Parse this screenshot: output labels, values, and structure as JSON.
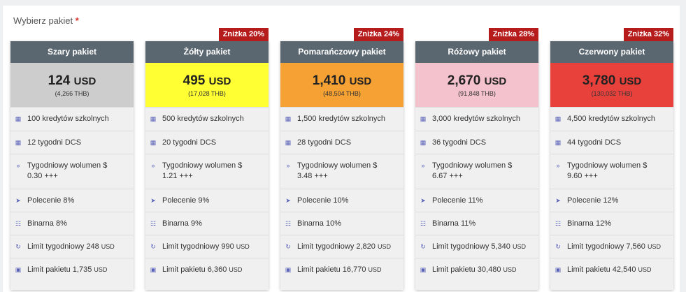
{
  "section": {
    "label": "Wybierz pakiet",
    "required_mark": "*"
  },
  "labels": {
    "credits_suffix": "kredytów szkolnych",
    "dcs_suffix": "tygodni DCS",
    "volume_prefix": "Tygodniowy wolumen $",
    "volume_suffix": "+++",
    "referral_prefix": "Polecenie",
    "binary_prefix": "Binarna",
    "weekly_limit_prefix": "Limit tygodniowy",
    "package_limit_prefix": "Limit pakietu",
    "currency": "USD"
  },
  "packages": [
    {
      "name": "Szary pakiet",
      "badge": "",
      "price": "124",
      "currency": "USD",
      "sub": "(4,266 THB)",
      "color": "#cdcdcd",
      "credits": "100 kredytów szkolnych",
      "dcs": "12 tygodni DCS",
      "volume_line1": "Tygodniowy wolumen $",
      "volume_line2": "0.30 +++",
      "referral": "Polecenie 8%",
      "binary": "Binarna 8%",
      "weekly_limit": "Limit tygodniowy 248",
      "weekly_unit": "USD",
      "package_limit": "Limit pakietu 1,735",
      "package_unit": "USD"
    },
    {
      "name": "Żółty pakiet",
      "badge": "Zniżka 20%",
      "price": "495",
      "currency": "USD",
      "sub": "(17,028 THB)",
      "color": "#ffff33",
      "credits": "500 kredytów szkolnych",
      "dcs": "20 tygodni DCS",
      "volume_line1": "Tygodniowy wolumen $",
      "volume_line2": "1.21 +++",
      "referral": "Polecenie 9%",
      "binary": "Binarna 9%",
      "weekly_limit": "Limit tygodniowy 990",
      "weekly_unit": "USD",
      "package_limit": "Limit pakietu 6,360",
      "package_unit": "USD"
    },
    {
      "name": "Pomarańczowy pakiet",
      "badge": "Zniżka 24%",
      "price": "1,410",
      "currency": "USD",
      "sub": "(48,504 THB)",
      "color": "#f5a133",
      "credits": "1,500 kredytów szkolnych",
      "dcs": "28 tygodni DCS",
      "volume_line1": "Tygodniowy wolumen $",
      "volume_line2": "3.48 +++",
      "referral": "Polecenie 10%",
      "binary": "Binarna 10%",
      "weekly_limit": "Limit tygodniowy 2,820",
      "weekly_unit": "USD",
      "package_limit": "Limit pakietu 16,770",
      "package_unit": "USD"
    },
    {
      "name": "Różowy pakiet",
      "badge": "Zniżka 28%",
      "price": "2,670",
      "currency": "USD",
      "sub": "(91,848 THB)",
      "color": "#f4c2cc",
      "credits": "3,000 kredytów szkolnych",
      "dcs": "36 tygodni DCS",
      "volume_line1": "Tygodniowy wolumen $",
      "volume_line2": "6.67 +++",
      "referral": "Polecenie 11%",
      "binary": "Binarna 11%",
      "weekly_limit": "Limit tygodniowy 5,340",
      "weekly_unit": "USD",
      "package_limit": "Limit pakietu 30,480",
      "package_unit": "USD"
    },
    {
      "name": "Czerwony pakiet",
      "badge": "Zniżka 32%",
      "price": "3,780",
      "currency": "USD",
      "sub": "(130,032 THB)",
      "color": "#e8413c",
      "credits": "4,500 kredytów szkolnych",
      "dcs": "44 tygodni DCS",
      "volume_line1": "Tygodniowy wolumen $",
      "volume_line2": "9.60 +++",
      "referral": "Polecenie 12%",
      "binary": "Binarna 12%",
      "weekly_limit": "Limit tygodniowy 7,560",
      "weekly_unit": "USD",
      "package_limit": "Limit pakietu 42,540",
      "package_unit": "USD"
    }
  ],
  "icons": {
    "credits": "coins-icon",
    "dcs": "calendar-icon",
    "volume": "double-chevron-right-icon",
    "referral": "arrow-circle-right-icon",
    "binary": "sitemap-icon",
    "weekly_limit": "redo-icon",
    "package_limit": "money-bill-icon"
  },
  "badge_color": "#b71c1c",
  "header_color": "#5b6770"
}
